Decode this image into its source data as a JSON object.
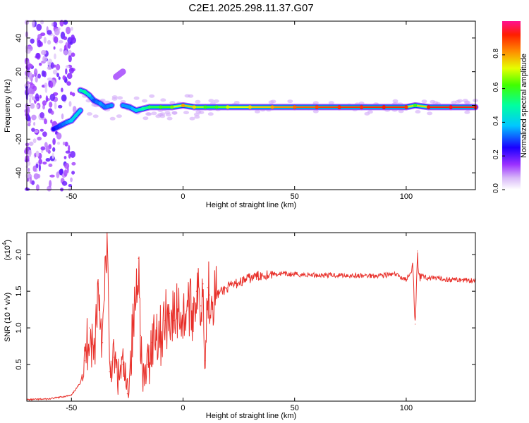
{
  "title": "C2E1.2025.298.11.37.G07",
  "chart_data": [
    {
      "type": "heatmap",
      "xlabel": "Height of straight line (km)",
      "ylabel": "Frequency (Hz)",
      "xlim": [
        -70,
        131
      ],
      "ylim": [
        -50,
        50
      ],
      "x_ticks": [
        -50,
        0,
        50,
        100
      ],
      "y_ticks": [
        -40,
        -20,
        0,
        20,
        40
      ],
      "colorbar": {
        "label": "Normalized spectral amplitude",
        "range": [
          0,
          1
        ],
        "ticks": [
          "0.0",
          "0.2",
          "0.4",
          "0.6",
          "0.8"
        ]
      },
      "ridge": [
        {
          "x": -58,
          "y": -14,
          "a": 0.25
        },
        {
          "x": -55,
          "y": -12,
          "a": 0.3
        },
        {
          "x": -52,
          "y": -10,
          "a": 0.35
        },
        {
          "x": -50,
          "y": -9,
          "a": 0.4
        },
        {
          "x": -48,
          "y": -6,
          "a": 0.42
        },
        {
          "x": -46,
          "y": -3,
          "a": 0.38
        },
        {
          "x": -46,
          "y": 9,
          "a": 0.45
        },
        {
          "x": -44,
          "y": 8,
          "a": 0.5
        },
        {
          "x": -42,
          "y": 6,
          "a": 0.4
        },
        {
          "x": -40,
          "y": 3,
          "a": 0.3
        },
        {
          "x": -37,
          "y": 1,
          "a": 0.35
        },
        {
          "x": -35,
          "y": -1,
          "a": 0.32
        },
        {
          "x": -32,
          "y": 0,
          "a": 0.35
        },
        {
          "x": -30,
          "y": 17,
          "a": 0.12
        },
        {
          "x": -27,
          "y": 20,
          "a": 0.12
        },
        {
          "x": -27,
          "y": 0,
          "a": 0.35
        },
        {
          "x": -24,
          "y": -1,
          "a": 0.35
        },
        {
          "x": -21,
          "y": -3,
          "a": 0.4
        },
        {
          "x": -18,
          "y": -2,
          "a": 0.5
        },
        {
          "x": -15,
          "y": -1,
          "a": 0.55
        },
        {
          "x": -10,
          "y": -1,
          "a": 0.6
        },
        {
          "x": -5,
          "y": -1,
          "a": 0.65
        },
        {
          "x": 0,
          "y": 0,
          "a": 0.8
        },
        {
          "x": 5,
          "y": -1,
          "a": 0.75
        },
        {
          "x": 10,
          "y": -1,
          "a": 0.6
        },
        {
          "x": 15,
          "y": -1,
          "a": 0.6
        },
        {
          "x": 20,
          "y": -1,
          "a": 0.7
        },
        {
          "x": 30,
          "y": -1,
          "a": 0.75
        },
        {
          "x": 40,
          "y": -1,
          "a": 0.8
        },
        {
          "x": 50,
          "y": -1,
          "a": 0.85
        },
        {
          "x": 60,
          "y": -1,
          "a": 0.88
        },
        {
          "x": 70,
          "y": -1,
          "a": 0.9
        },
        {
          "x": 80,
          "y": -1,
          "a": 0.9
        },
        {
          "x": 90,
          "y": -1,
          "a": 0.92
        },
        {
          "x": 100,
          "y": -1,
          "a": 0.9
        },
        {
          "x": 104,
          "y": 0,
          "a": 0.6
        },
        {
          "x": 110,
          "y": -1,
          "a": 0.92
        },
        {
          "x": 120,
          "y": -1,
          "a": 0.93
        },
        {
          "x": 131,
          "y": -1,
          "a": 0.93
        }
      ]
    },
    {
      "type": "line",
      "xlabel": "Height of straight line (km)",
      "ylabel": "SNR (10 * v/v)",
      "y_multiplier": "(x10",
      "y_multiplier_exp": "4",
      "y_multiplier_close": ")",
      "xlim": [
        -70,
        131
      ],
      "ylim": [
        0,
        2.3
      ],
      "x_ticks": [
        -50,
        0,
        50,
        100
      ],
      "y_ticks": [
        "0.5",
        "1.0",
        "1.5",
        "2.0"
      ],
      "series": [
        {
          "color": "#e8302a",
          "x": [
            -70,
            -60,
            -50,
            -46,
            -44,
            -42,
            -40,
            -38,
            -36,
            -34,
            -33,
            -31,
            -29,
            -27,
            -25,
            -22,
            -20,
            -19,
            -18,
            -16,
            -14,
            -12,
            -10,
            -8,
            -6,
            -4,
            -2,
            0,
            2,
            4,
            6,
            8,
            9,
            10,
            11,
            12,
            15,
            20,
            25,
            30,
            35,
            40,
            50,
            60,
            70,
            80,
            90,
            95,
            100,
            103,
            104,
            105,
            106,
            108,
            110,
            120,
            131
          ],
          "y": [
            0.02,
            0.03,
            0.08,
            0.25,
            0.55,
            1.0,
            0.6,
            1.6,
            0.8,
            2.3,
            0.4,
            0.6,
            0.3,
            0.5,
            0.1,
            1.1,
            1.95,
            0.9,
            0.2,
            0.5,
            0.8,
            1.0,
            0.9,
            1.1,
            1.2,
            1.1,
            1.3,
            1.1,
            1.35,
            1.2,
            1.5,
            1.3,
            1.6,
            0.55,
            1.55,
            1.45,
            1.45,
            1.55,
            1.62,
            1.68,
            1.72,
            1.74,
            1.73,
            1.72,
            1.72,
            1.71,
            1.72,
            1.73,
            1.66,
            1.78,
            1.05,
            2.05,
            1.72,
            1.7,
            1.68,
            1.66,
            1.65
          ]
        }
      ]
    }
  ]
}
